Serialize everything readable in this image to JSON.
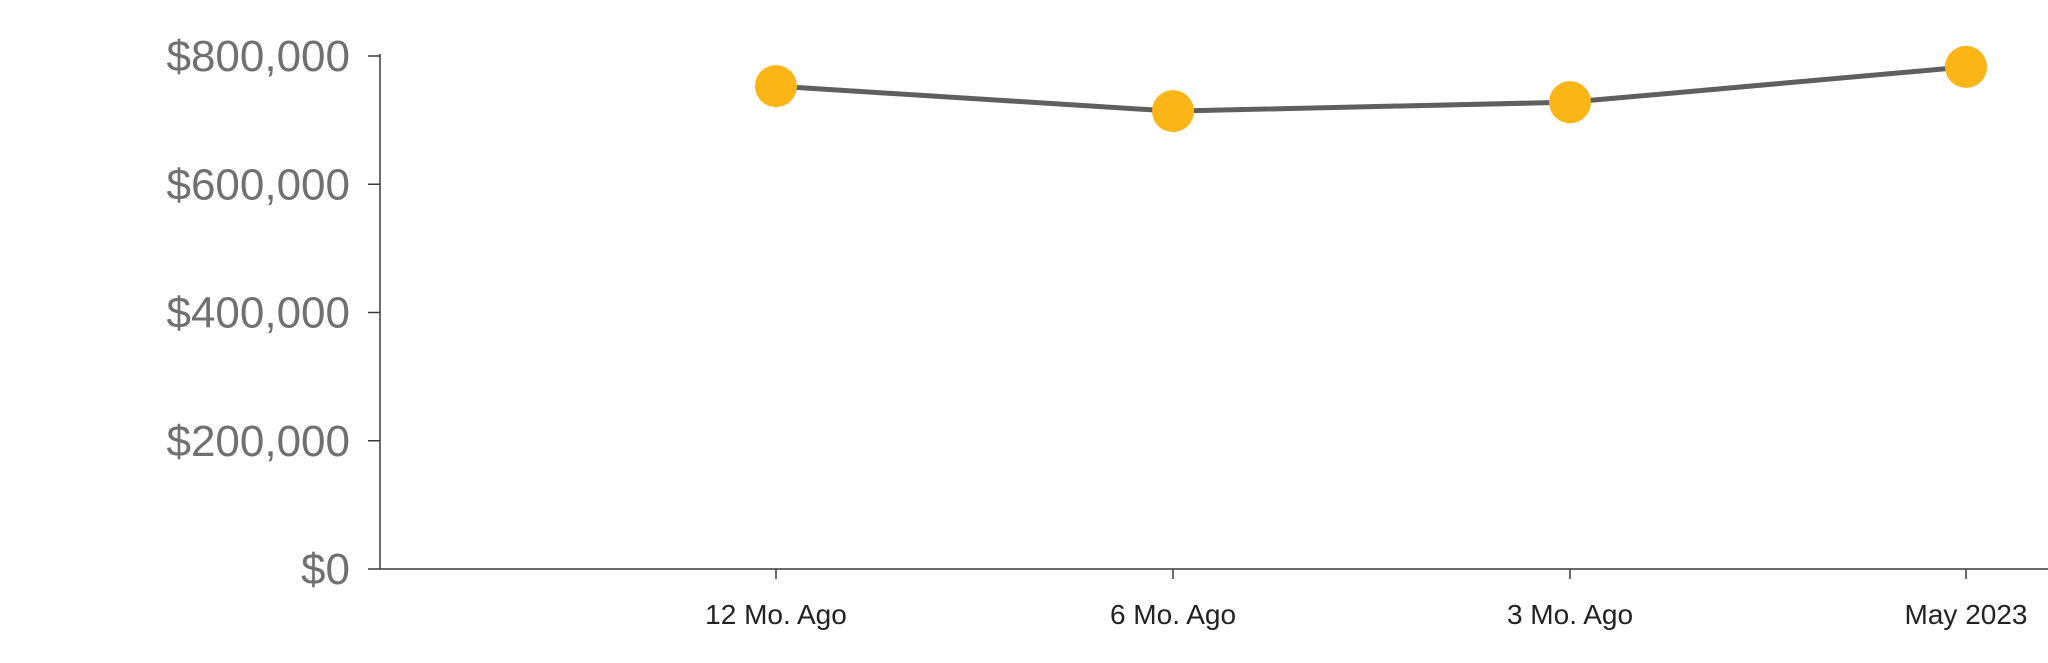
{
  "chart_data": {
    "type": "line",
    "categories": [
      "12 Mo. Ago",
      "6 Mo. Ago",
      "3 Mo. Ago",
      "May 2023"
    ],
    "series": [
      {
        "values": [
          753000,
          714000,
          728000,
          783000
        ]
      }
    ],
    "yticks": [
      0,
      200000,
      400000,
      600000,
      800000
    ],
    "ytick_labels": [
      "$0",
      "$200,000",
      "$400,000",
      "$600,000",
      "$800,000"
    ],
    "ylim": [
      0,
      800000
    ],
    "xlabel": "",
    "ylabel": "",
    "title": "",
    "grid": false,
    "legend": "none",
    "colors": {
      "line": "#5f5f5f",
      "marker": "#fbb516",
      "axis": "#3a3a3a"
    }
  }
}
